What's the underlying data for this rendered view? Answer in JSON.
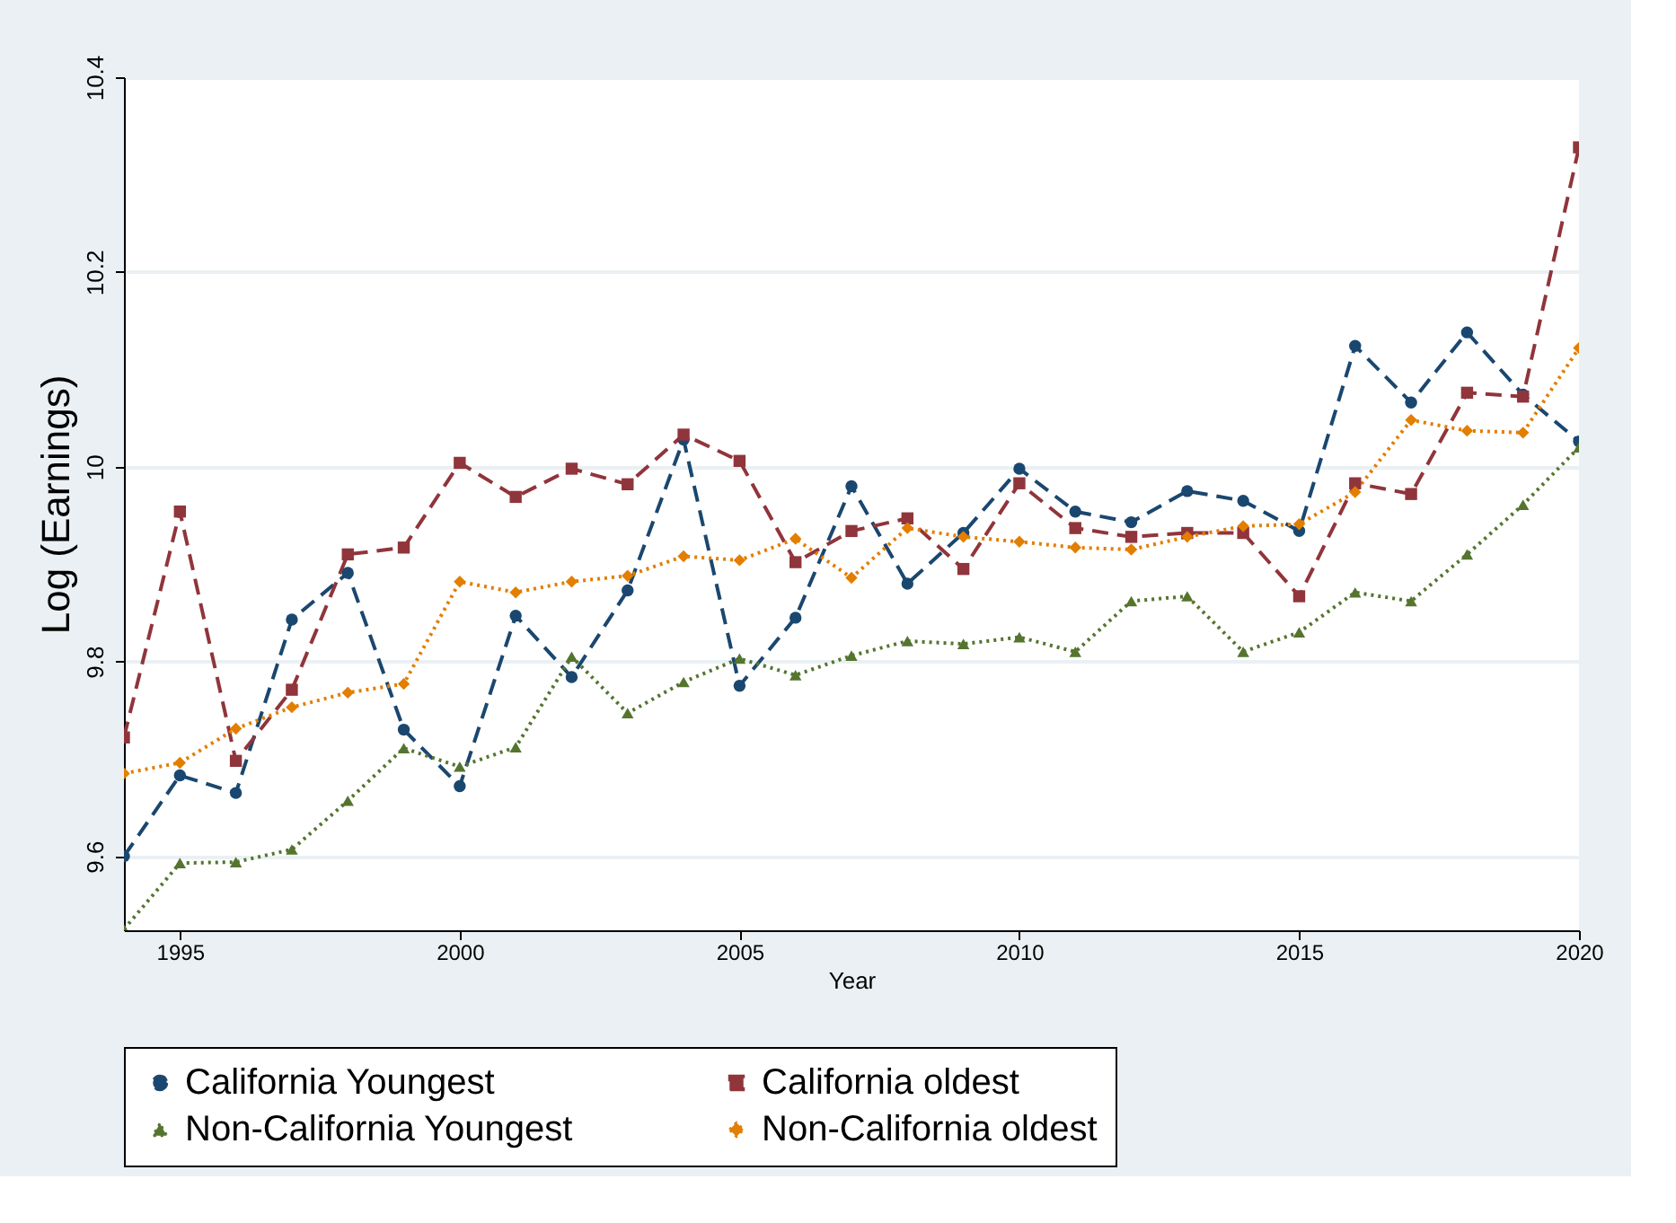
{
  "chart_data": {
    "type": "line",
    "xlabel": "Year",
    "ylabel": "Log (Earnings)",
    "x": [
      1994,
      1995,
      1996,
      1997,
      1998,
      1999,
      2000,
      2001,
      2002,
      2003,
      2004,
      2005,
      2006,
      2007,
      2008,
      2009,
      2010,
      2011,
      2012,
      2013,
      2014,
      2015,
      2016,
      2017,
      2018,
      2019,
      2020
    ],
    "xlim": [
      1994,
      2020
    ],
    "xticks": [
      1995,
      2000,
      2005,
      2010,
      2015,
      2020
    ],
    "ylim": [
      9.524,
      10.4
    ],
    "yticks": [
      9.6,
      9.8,
      10,
      10.2,
      10.4
    ],
    "grid": "y",
    "legend": "bottom",
    "series": [
      {
        "name": "California Youngest",
        "color": "#1a476f",
        "line_style": "dashed",
        "marker": "circle",
        "values": [
          9.6,
          9.683,
          9.665,
          9.843,
          9.891,
          9.73,
          9.672,
          9.847,
          9.784,
          9.873,
          10.028,
          9.775,
          9.845,
          9.98,
          9.88,
          9.932,
          9.998,
          9.954,
          9.943,
          9.975,
          9.965,
          9.934,
          10.124,
          10.066,
          10.138,
          10.074,
          10.026
        ]
      },
      {
        "name": "California oldest",
        "color": "#90353b",
        "line_style": "dashed",
        "marker": "square",
        "values": [
          9.722,
          9.954,
          9.698,
          9.771,
          9.91,
          9.917,
          10.004,
          9.969,
          9.998,
          9.982,
          10.033,
          10.006,
          9.902,
          9.934,
          9.947,
          9.895,
          9.983,
          9.937,
          9.928,
          9.932,
          9.932,
          9.867,
          9.983,
          9.972,
          10.076,
          10.072,
          10.328
        ]
      },
      {
        "name": "Non-California Youngest",
        "color": "#55752f",
        "line_style": "dotted",
        "marker": "triangle",
        "values": [
          9.525,
          9.593,
          9.594,
          9.607,
          9.657,
          9.711,
          9.692,
          9.712,
          9.805,
          9.747,
          9.779,
          9.803,
          9.786,
          9.806,
          9.821,
          9.818,
          9.825,
          9.81,
          9.862,
          9.867,
          9.81,
          9.83,
          9.871,
          9.862,
          9.91,
          9.961,
          10.02
        ]
      },
      {
        "name": "Non-California oldest",
        "color": "#e37e00",
        "line_style": "dotted",
        "marker": "diamond",
        "values": [
          9.685,
          9.696,
          9.731,
          9.753,
          9.768,
          9.777,
          9.882,
          9.871,
          9.882,
          9.888,
          9.908,
          9.904,
          9.926,
          9.886,
          9.937,
          9.928,
          9.923,
          9.917,
          9.915,
          9.928,
          9.939,
          9.941,
          9.974,
          10.048,
          10.037,
          10.035,
          10.122
        ]
      }
    ]
  }
}
